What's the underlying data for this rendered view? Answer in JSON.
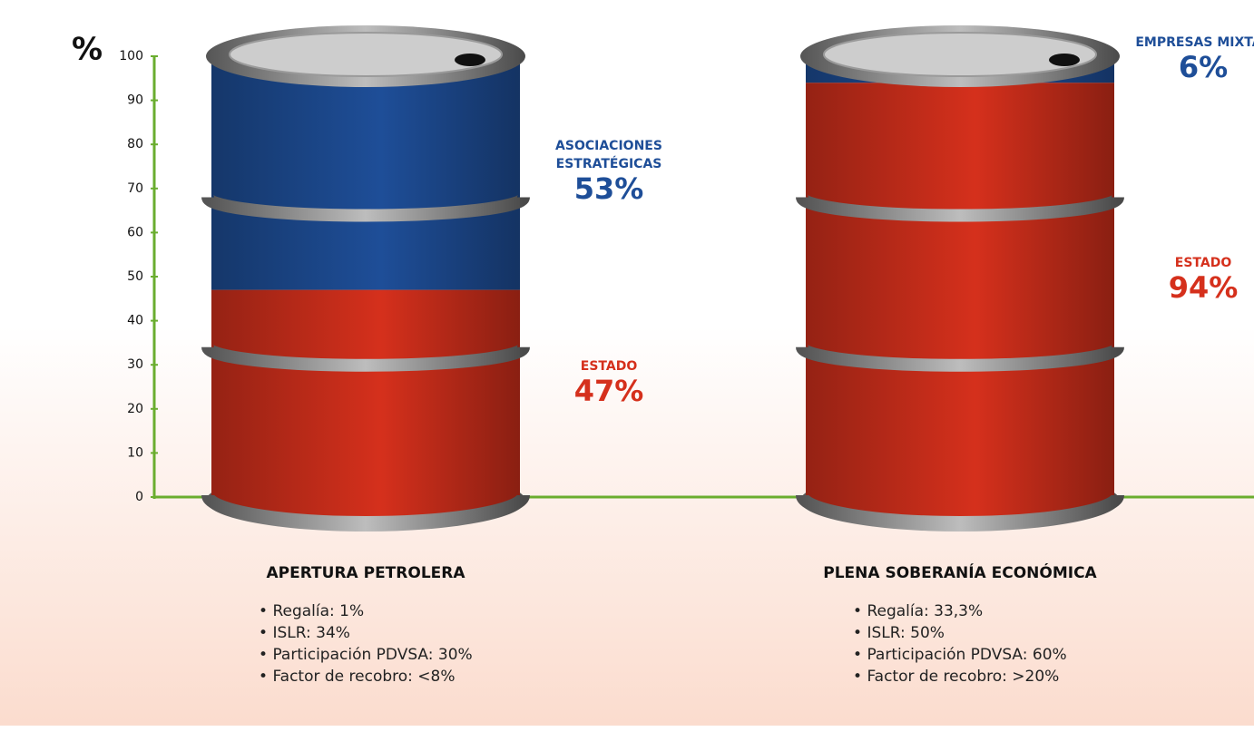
{
  "chart_data": {
    "type": "bar",
    "stacked": true,
    "ylabel": "%",
    "categories": [
      "APERTURA PETROLERA",
      "PLENA SOBERANÍA ECONÓMICA"
    ],
    "series": [
      {
        "name": "ESTADO",
        "color": "#d5301c",
        "values": [
          47,
          94
        ],
        "value_labels": [
          "47%",
          "94%"
        ]
      },
      {
        "labels": [
          "ASOCIACIONES ESTRATÉGICAS",
          "EMPRESAS MIXTAS"
        ],
        "color": "#1e4e98",
        "values": [
          53,
          6
        ],
        "value_labels": [
          "53%",
          "6%"
        ]
      }
    ],
    "details": [
      [
        "Regalía: 1%",
        "ISLR: 34%",
        "Participación PDVSA: 30%",
        "Factor de recobro: <8%"
      ],
      [
        "Regalía: 33,3%",
        "ISLR: 50%",
        "Participación PDVSA: 60%",
        "Factor de recobro: >20%"
      ]
    ],
    "ylim": [
      0,
      100
    ],
    "yticks": [
      0,
      10,
      20,
      30,
      40,
      50,
      60,
      70,
      80,
      90,
      100
    ]
  }
}
